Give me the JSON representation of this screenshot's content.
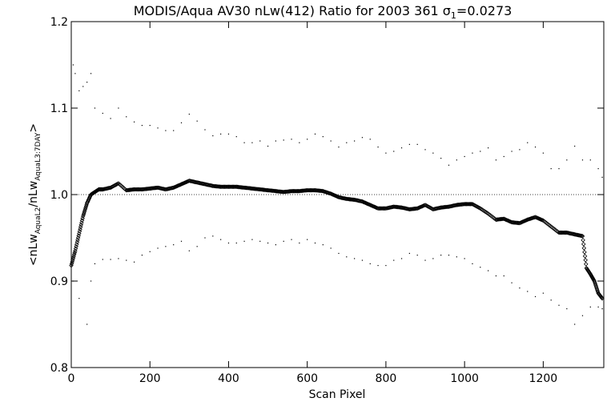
{
  "chart_data": {
    "type": "scatter",
    "title": "MODIS/Aqua AV30 nLw(412) Ratio for 2003 361 σ",
    "title_subscript": "1",
    "title_suffix": "=0.0273",
    "xlabel": "Scan Pixel",
    "ylabel": {
      "open": "<",
      "part1": "nLw",
      "sub1": "AquaL2",
      "slash": "/",
      "part2": "nLw",
      "sub2": "AquaL3:7DAY",
      "close": ">"
    },
    "xlim": [
      0,
      1354
    ],
    "ylim": [
      0.8,
      1.2
    ],
    "x_ticks": [
      0,
      200,
      400,
      600,
      800,
      1000,
      1200
    ],
    "x_tick_labels": [
      "0",
      "200",
      "400",
      "600",
      "800",
      "1000",
      "1200"
    ],
    "y_ticks": [
      0.8,
      0.9,
      1.0,
      1.1,
      1.2
    ],
    "y_tick_labels": [
      "0.8",
      "0.9",
      "1.0",
      "1.1",
      "1.2"
    ],
    "reference_line": 1.0,
    "grid": false,
    "series": [
      {
        "role": "mean",
        "marker": "diamond",
        "points": [
          [
            0,
            0.918
          ],
          [
            10,
            0.935
          ],
          [
            20,
            0.955
          ],
          [
            30,
            0.975
          ],
          [
            40,
            0.99
          ],
          [
            50,
            1.0
          ],
          [
            60,
            1.003
          ],
          [
            70,
            1.006
          ],
          [
            80,
            1.006
          ],
          [
            100,
            1.008
          ],
          [
            120,
            1.013
          ],
          [
            140,
            1.005
          ],
          [
            160,
            1.006
          ],
          [
            180,
            1.006
          ],
          [
            200,
            1.007
          ],
          [
            220,
            1.008
          ],
          [
            240,
            1.006
          ],
          [
            260,
            1.008
          ],
          [
            280,
            1.012
          ],
          [
            300,
            1.016
          ],
          [
            320,
            1.014
          ],
          [
            340,
            1.012
          ],
          [
            360,
            1.01
          ],
          [
            380,
            1.009
          ],
          [
            400,
            1.009
          ],
          [
            420,
            1.009
          ],
          [
            440,
            1.008
          ],
          [
            460,
            1.007
          ],
          [
            480,
            1.006
          ],
          [
            500,
            1.005
          ],
          [
            520,
            1.004
          ],
          [
            540,
            1.003
          ],
          [
            560,
            1.004
          ],
          [
            580,
            1.004
          ],
          [
            600,
            1.005
          ],
          [
            620,
            1.005
          ],
          [
            640,
            1.004
          ],
          [
            660,
            1.001
          ],
          [
            680,
            0.997
          ],
          [
            700,
            0.995
          ],
          [
            720,
            0.994
          ],
          [
            740,
            0.992
          ],
          [
            760,
            0.988
          ],
          [
            780,
            0.984
          ],
          [
            800,
            0.984
          ],
          [
            820,
            0.986
          ],
          [
            840,
            0.985
          ],
          [
            860,
            0.983
          ],
          [
            880,
            0.984
          ],
          [
            900,
            0.988
          ],
          [
            920,
            0.983
          ],
          [
            940,
            0.985
          ],
          [
            960,
            0.986
          ],
          [
            980,
            0.988
          ],
          [
            1000,
            0.989
          ],
          [
            1020,
            0.989
          ],
          [
            1040,
            0.984
          ],
          [
            1060,
            0.978
          ],
          [
            1080,
            0.971
          ],
          [
            1100,
            0.972
          ],
          [
            1120,
            0.968
          ],
          [
            1140,
            0.967
          ],
          [
            1160,
            0.971
          ],
          [
            1180,
            0.974
          ],
          [
            1200,
            0.97
          ],
          [
            1220,
            0.963
          ],
          [
            1240,
            0.956
          ],
          [
            1260,
            0.956
          ],
          [
            1280,
            0.954
          ],
          [
            1300,
            0.952
          ],
          [
            1310,
            0.915
          ],
          [
            1320,
            0.908
          ],
          [
            1330,
            0.9
          ],
          [
            1340,
            0.886
          ],
          [
            1350,
            0.88
          ]
        ]
      },
      {
        "role": "upper",
        "marker": "dot",
        "points": [
          [
            5,
            1.15
          ],
          [
            10,
            1.14
          ],
          [
            20,
            1.12
          ],
          [
            30,
            1.125
          ],
          [
            40,
            1.13
          ],
          [
            50,
            1.14
          ],
          [
            60,
            1.1
          ],
          [
            80,
            1.094
          ],
          [
            100,
            1.088
          ],
          [
            120,
            1.1
          ],
          [
            140,
            1.09
          ],
          [
            160,
            1.084
          ],
          [
            180,
            1.08
          ],
          [
            200,
            1.08
          ],
          [
            220,
            1.077
          ],
          [
            240,
            1.074
          ],
          [
            260,
            1.074
          ],
          [
            280,
            1.083
          ],
          [
            300,
            1.093
          ],
          [
            320,
            1.085
          ],
          [
            340,
            1.075
          ],
          [
            360,
            1.068
          ],
          [
            380,
            1.07
          ],
          [
            400,
            1.07
          ],
          [
            420,
            1.067
          ],
          [
            440,
            1.06
          ],
          [
            460,
            1.06
          ],
          [
            480,
            1.062
          ],
          [
            500,
            1.056
          ],
          [
            520,
            1.062
          ],
          [
            540,
            1.063
          ],
          [
            560,
            1.064
          ],
          [
            580,
            1.06
          ],
          [
            600,
            1.064
          ],
          [
            620,
            1.07
          ],
          [
            640,
            1.067
          ],
          [
            660,
            1.062
          ],
          [
            680,
            1.055
          ],
          [
            700,
            1.06
          ],
          [
            720,
            1.062
          ],
          [
            740,
            1.066
          ],
          [
            760,
            1.064
          ],
          [
            780,
            1.055
          ],
          [
            800,
            1.048
          ],
          [
            820,
            1.05
          ],
          [
            840,
            1.054
          ],
          [
            860,
            1.058
          ],
          [
            880,
            1.058
          ],
          [
            900,
            1.052
          ],
          [
            920,
            1.048
          ],
          [
            940,
            1.042
          ],
          [
            960,
            1.034
          ],
          [
            980,
            1.04
          ],
          [
            1000,
            1.044
          ],
          [
            1020,
            1.048
          ],
          [
            1040,
            1.05
          ],
          [
            1060,
            1.054
          ],
          [
            1080,
            1.04
          ],
          [
            1100,
            1.044
          ],
          [
            1120,
            1.05
          ],
          [
            1140,
            1.052
          ],
          [
            1160,
            1.06
          ],
          [
            1180,
            1.055
          ],
          [
            1200,
            1.048
          ],
          [
            1220,
            1.03
          ],
          [
            1240,
            1.03
          ],
          [
            1260,
            1.04
          ],
          [
            1280,
            1.056
          ],
          [
            1300,
            1.04
          ],
          [
            1320,
            1.04
          ],
          [
            1340,
            1.03
          ],
          [
            1350,
            1.02
          ]
        ]
      },
      {
        "role": "lower",
        "marker": "dot",
        "points": [
          [
            5,
            0.9
          ],
          [
            20,
            0.88
          ],
          [
            40,
            0.85
          ],
          [
            50,
            0.9
          ],
          [
            60,
            0.92
          ],
          [
            80,
            0.925
          ],
          [
            100,
            0.925
          ],
          [
            120,
            0.926
          ],
          [
            140,
            0.924
          ],
          [
            160,
            0.922
          ],
          [
            180,
            0.93
          ],
          [
            200,
            0.934
          ],
          [
            220,
            0.938
          ],
          [
            240,
            0.94
          ],
          [
            260,
            0.942
          ],
          [
            280,
            0.946
          ],
          [
            300,
            0.935
          ],
          [
            320,
            0.94
          ],
          [
            340,
            0.95
          ],
          [
            360,
            0.952
          ],
          [
            380,
            0.948
          ],
          [
            400,
            0.944
          ],
          [
            420,
            0.944
          ],
          [
            440,
            0.946
          ],
          [
            460,
            0.948
          ],
          [
            480,
            0.946
          ],
          [
            500,
            0.944
          ],
          [
            520,
            0.942
          ],
          [
            540,
            0.946
          ],
          [
            560,
            0.948
          ],
          [
            580,
            0.944
          ],
          [
            600,
            0.948
          ],
          [
            620,
            0.944
          ],
          [
            640,
            0.942
          ],
          [
            660,
            0.938
          ],
          [
            680,
            0.932
          ],
          [
            700,
            0.928
          ],
          [
            720,
            0.926
          ],
          [
            740,
            0.924
          ],
          [
            760,
            0.92
          ],
          [
            780,
            0.918
          ],
          [
            800,
            0.918
          ],
          [
            820,
            0.924
          ],
          [
            840,
            0.926
          ],
          [
            860,
            0.932
          ],
          [
            880,
            0.93
          ],
          [
            900,
            0.924
          ],
          [
            920,
            0.926
          ],
          [
            940,
            0.93
          ],
          [
            960,
            0.93
          ],
          [
            980,
            0.928
          ],
          [
            1000,
            0.926
          ],
          [
            1020,
            0.92
          ],
          [
            1040,
            0.916
          ],
          [
            1060,
            0.912
          ],
          [
            1080,
            0.906
          ],
          [
            1100,
            0.906
          ],
          [
            1120,
            0.898
          ],
          [
            1140,
            0.892
          ],
          [
            1160,
            0.888
          ],
          [
            1180,
            0.882
          ],
          [
            1200,
            0.886
          ],
          [
            1220,
            0.878
          ],
          [
            1240,
            0.872
          ],
          [
            1260,
            0.868
          ],
          [
            1280,
            0.85
          ],
          [
            1300,
            0.86
          ],
          [
            1320,
            0.87
          ],
          [
            1340,
            0.87
          ],
          [
            1350,
            0.868
          ]
        ]
      }
    ]
  }
}
